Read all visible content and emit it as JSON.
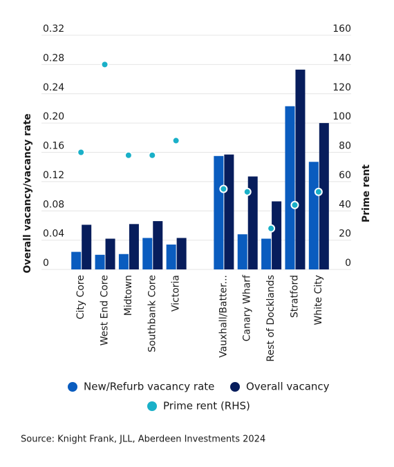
{
  "chart_data": {
    "type": "bar",
    "y_label": "Overall vacancy/vacancy rate",
    "y2_label": "Prime rent",
    "categories": [
      "City Core",
      "West End Core",
      "Midtown",
      "Southbank Core",
      "Victoria",
      null,
      "Vauxhall/Batter...",
      "Canary Wharf",
      "Rest of Docklands",
      "Stratford",
      "White City"
    ],
    "series": [
      {
        "name": "New/Refurb vacancy rate",
        "color": "#0a5cbf",
        "values": [
          0.024,
          0.02,
          0.021,
          0.043,
          0.034,
          null,
          0.155,
          0.048,
          0.042,
          0.223,
          0.147
        ]
      },
      {
        "name": "Overall vacancy",
        "color": "#071d5c",
        "values": [
          0.061,
          0.042,
          0.062,
          0.066,
          0.043,
          null,
          0.157,
          0.127,
          0.093,
          0.273,
          0.2
        ]
      },
      {
        "name": "Prime rent (RHS)",
        "color": "#1ab0c8",
        "axis": "y2",
        "type": "scatter",
        "values": [
          80,
          140,
          78,
          78,
          88,
          null,
          55,
          53,
          28,
          44,
          53
        ]
      }
    ],
    "ylim": [
      0,
      0.32
    ],
    "yticks": [
      0,
      0.04,
      0.08,
      0.12,
      0.16,
      {
        "value": 0.2,
        "label": "0.20"
      },
      0.24,
      0.28,
      0.32
    ],
    "y2lim": [
      0,
      160
    ],
    "y2ticks": [
      0,
      20,
      40,
      60,
      80,
      100,
      120,
      140,
      160
    ],
    "grid": true,
    "source": "Source: Knight Frank, JLL, Aberdeen Investments 2024"
  }
}
